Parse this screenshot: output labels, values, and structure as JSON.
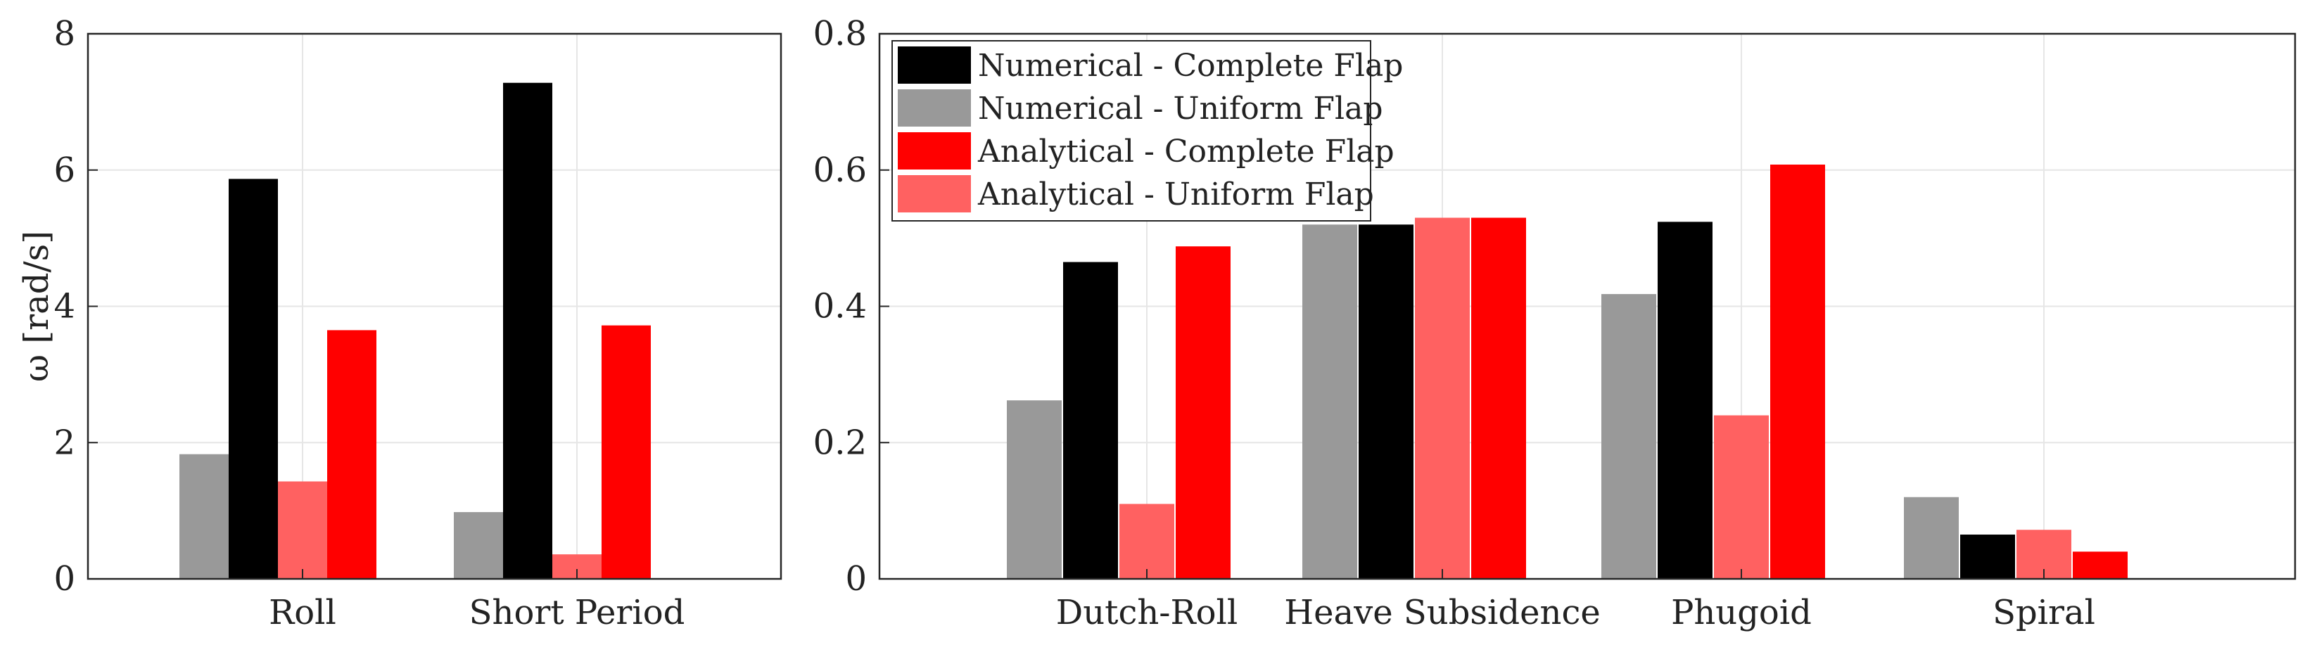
{
  "chart_data": [
    {
      "type": "bar",
      "ylabel": "ω [rad/s]",
      "ylim": [
        0,
        8
      ],
      "yticks": [
        "0",
        "2",
        "4",
        "6",
        "8"
      ],
      "grid": true,
      "categories": [
        "Roll",
        "Short Period"
      ],
      "series": [
        {
          "name": "Numerical - Uniform Flap",
          "color": "#999999",
          "values": [
            1.83,
            0.98
          ]
        },
        {
          "name": "Numerical - Complete Flap",
          "color": "#000000",
          "values": [
            5.87,
            7.28
          ]
        },
        {
          "name": "Analytical - Uniform Flap",
          "color": "#ff6161",
          "values": [
            1.43,
            0.36
          ]
        },
        {
          "name": "Analytical - Complete Flap",
          "color": "#ff0000",
          "values": [
            3.65,
            3.72
          ]
        }
      ]
    },
    {
      "type": "bar",
      "ylim": [
        0,
        0.8
      ],
      "yticks": [
        "0",
        "0.2",
        "0.4",
        "0.6",
        "0.8"
      ],
      "grid": true,
      "legend_position": "top-left",
      "categories": [
        "Dutch-Roll",
        "Heave Subsidence",
        "Phugoid",
        "Spiral"
      ],
      "series": [
        {
          "name": "Numerical - Uniform Flap",
          "color": "#999999",
          "values": [
            0.262,
            0.52,
            0.418,
            0.12
          ]
        },
        {
          "name": "Numerical - Complete Flap",
          "color": "#000000",
          "values": [
            0.465,
            0.52,
            0.524,
            0.065
          ]
        },
        {
          "name": "Analytical - Uniform Flap",
          "color": "#ff6161",
          "values": [
            0.11,
            0.53,
            0.24,
            0.072
          ]
        },
        {
          "name": "Analytical - Complete Flap",
          "color": "#ff0000",
          "values": [
            0.488,
            0.53,
            0.608,
            0.04
          ]
        }
      ],
      "legend": [
        {
          "label": "Numerical - Complete Flap",
          "color": "#000000"
        },
        {
          "label": "Numerical - Uniform Flap",
          "color": "#999999"
        },
        {
          "label": "Analytical - Complete Flap",
          "color": "#ff0000"
        },
        {
          "label": "Analytical - Uniform Flap",
          "color": "#ff6161"
        }
      ]
    }
  ]
}
